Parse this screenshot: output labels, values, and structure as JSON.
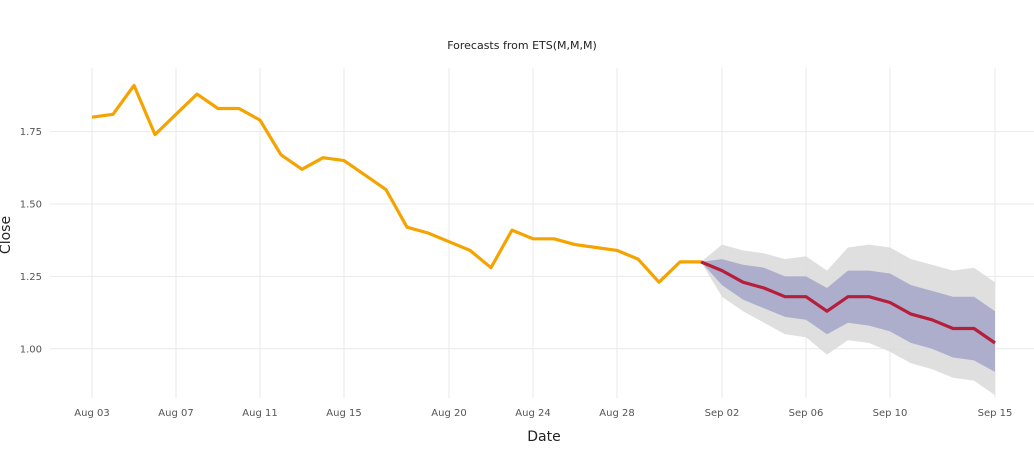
{
  "chart_data": {
    "type": "line",
    "title": "Forecasts from ETS(M,M,M)",
    "xlabel": "Date",
    "ylabel": "Close",
    "xlim": [
      "2025-08-03",
      "2025-09-15"
    ],
    "ylim": [
      0.83,
      1.97
    ],
    "grid": true,
    "legend": "none",
    "x_ticks": [
      "Aug 03",
      "Aug 07",
      "Aug 11",
      "Aug 15",
      "Aug 20",
      "Aug 24",
      "Aug 28",
      "Sep 02",
      "Sep 06",
      "Sep 10",
      "Sep 15"
    ],
    "x_tick_dates": [
      "2025-08-03",
      "2025-08-07",
      "2025-08-11",
      "2025-08-15",
      "2025-08-20",
      "2025-08-24",
      "2025-08-28",
      "2025-09-02",
      "2025-09-06",
      "2025-09-10",
      "2025-09-15"
    ],
    "y_ticks": [
      "1.00",
      "1.25",
      "1.50",
      "1.75"
    ],
    "y_tick_values": [
      1.0,
      1.25,
      1.5,
      1.75
    ],
    "colors": {
      "history": "#f5a300",
      "forecast": "#b51f3a",
      "band_80": "#a3a6c9",
      "band_95": "#dcdcdc"
    },
    "series": [
      {
        "role": "history",
        "x": [
          "2025-08-03",
          "2025-08-04",
          "2025-08-05",
          "2025-08-06",
          "2025-08-07",
          "2025-08-08",
          "2025-08-09",
          "2025-08-10",
          "2025-08-11",
          "2025-08-12",
          "2025-08-13",
          "2025-08-14",
          "2025-08-15",
          "2025-08-16",
          "2025-08-17",
          "2025-08-18",
          "2025-08-19",
          "2025-08-20",
          "2025-08-21",
          "2025-08-22",
          "2025-08-23",
          "2025-08-24",
          "2025-08-25",
          "2025-08-26",
          "2025-08-27",
          "2025-08-28",
          "2025-08-29",
          "2025-08-30",
          "2025-08-31",
          "2025-09-01"
        ],
        "values": [
          1.8,
          1.81,
          1.91,
          1.74,
          1.81,
          1.88,
          1.83,
          1.83,
          1.79,
          1.67,
          1.62,
          1.66,
          1.65,
          1.6,
          1.55,
          1.42,
          1.4,
          1.37,
          1.34,
          1.28,
          1.41,
          1.38,
          1.38,
          1.36,
          1.35,
          1.34,
          1.31,
          1.23,
          1.3,
          1.3
        ]
      },
      {
        "role": "forecast",
        "x": [
          "2025-09-01",
          "2025-09-02",
          "2025-09-03",
          "2025-09-04",
          "2025-09-05",
          "2025-09-06",
          "2025-09-07",
          "2025-09-08",
          "2025-09-09",
          "2025-09-10",
          "2025-09-11",
          "2025-09-12",
          "2025-09-13",
          "2025-09-14",
          "2025-09-15"
        ],
        "values": [
          1.3,
          1.27,
          1.23,
          1.21,
          1.18,
          1.18,
          1.13,
          1.18,
          1.18,
          1.16,
          1.12,
          1.1,
          1.07,
          1.07,
          1.02
        ],
        "lower_80": [
          1.3,
          1.22,
          1.17,
          1.14,
          1.11,
          1.1,
          1.05,
          1.09,
          1.08,
          1.06,
          1.02,
          1.0,
          0.97,
          0.96,
          0.92
        ],
        "upper_80": [
          1.3,
          1.31,
          1.29,
          1.28,
          1.25,
          1.25,
          1.21,
          1.27,
          1.27,
          1.26,
          1.22,
          1.2,
          1.18,
          1.18,
          1.13
        ],
        "lower_95": [
          1.3,
          1.18,
          1.13,
          1.09,
          1.05,
          1.04,
          0.98,
          1.03,
          1.02,
          0.99,
          0.95,
          0.93,
          0.9,
          0.89,
          0.84
        ],
        "upper_95": [
          1.3,
          1.36,
          1.34,
          1.33,
          1.31,
          1.32,
          1.27,
          1.35,
          1.36,
          1.35,
          1.31,
          1.29,
          1.27,
          1.28,
          1.23
        ]
      }
    ]
  }
}
